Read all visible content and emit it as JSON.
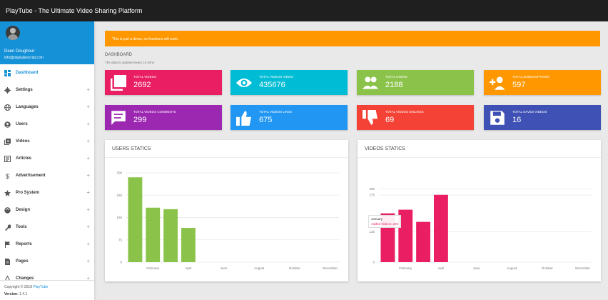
{
  "app": {
    "title": "PlayTube - The Ultimate Video Sharing Platform"
  },
  "user": {
    "name": "Deen Doughour",
    "email": "info@playtubescript.com"
  },
  "sidebar": {
    "items": [
      {
        "label": "Dashboard",
        "icon": "dashboard-icon",
        "active": true,
        "expandable": false
      },
      {
        "label": "Settings",
        "icon": "gear-icon",
        "active": false,
        "expandable": true
      },
      {
        "label": "Languages",
        "icon": "globe-icon",
        "active": false,
        "expandable": true
      },
      {
        "label": "Users",
        "icon": "user-icon",
        "active": false,
        "expandable": true
      },
      {
        "label": "Videos",
        "icon": "video-library-icon",
        "active": false,
        "expandable": true
      },
      {
        "label": "Articles",
        "icon": "articles-icon",
        "active": false,
        "expandable": true
      },
      {
        "label": "Advertisement",
        "icon": "dollar-icon",
        "active": false,
        "expandable": true
      },
      {
        "label": "Pro System",
        "icon": "star-icon",
        "active": false,
        "expandable": true
      },
      {
        "label": "Design",
        "icon": "palette-icon",
        "active": false,
        "expandable": true
      },
      {
        "label": "Tools",
        "icon": "wrench-icon",
        "active": false,
        "expandable": true
      },
      {
        "label": "Reports",
        "icon": "flag-icon",
        "active": false,
        "expandable": true
      },
      {
        "label": "Pages",
        "icon": "page-icon",
        "active": false,
        "expandable": true
      },
      {
        "label": "Changes",
        "icon": "changes-icon",
        "active": false,
        "expandable": true
      }
    ],
    "plus_glyph": "+"
  },
  "footer": {
    "copyright_prefix": "Copyright © 2018",
    "brand": "PlayTube",
    "version_label": "Version:",
    "version_value": "1.4.1"
  },
  "notice": {
    "text": "This is just a demo, no functions will work."
  },
  "dashboard": {
    "title": "DASHBOARD",
    "subtitle": "The data is updated every 10 mins"
  },
  "stats": [
    {
      "label": "TOTAL VIDEOS",
      "value": "2692",
      "color": "#e91e63",
      "icon": "video-library-icon"
    },
    {
      "label": "TOTAL VIDEOS VIEWS",
      "value": "435676",
      "color": "#00bcd4",
      "icon": "eye-icon"
    },
    {
      "label": "TOTAL USERS",
      "value": "2188",
      "color": "#8bc34a",
      "icon": "users-icon"
    },
    {
      "label": "TOTAL SUBSCRIPTIONS",
      "value": "597",
      "color": "#ff9800",
      "icon": "person-add-icon"
    },
    {
      "label": "TOTAL VIDEOS COMMENTS",
      "value": "299",
      "color": "#9c27b0",
      "icon": "comment-icon"
    },
    {
      "label": "TOTAL VIDEOS LIKES",
      "value": "675",
      "color": "#2196f3",
      "icon": "thumbs-up-icon"
    },
    {
      "label": "TOTAL VIDEOS DISLIKES",
      "value": "69",
      "color": "#f44336",
      "icon": "thumbs-down-icon"
    },
    {
      "label": "TOTAL SAVED VIDEOS",
      "value": "16",
      "color": "#3f51b5",
      "icon": "save-icon"
    }
  ],
  "chart_data": [
    {
      "type": "bar",
      "title": "USERS STATICS",
      "categories": [
        "January",
        "February",
        "March",
        "April",
        "May",
        "June",
        "July",
        "August",
        "September",
        "October",
        "November",
        "December"
      ],
      "x_tick_labels": [
        "February",
        "April",
        "June",
        "August",
        "October",
        "December"
      ],
      "y_ticks": [
        0,
        75,
        150,
        225,
        300
      ],
      "ylim": [
        0,
        300
      ],
      "grid": true,
      "color": "#8bc34a",
      "values": [
        285,
        183,
        178,
        115,
        0,
        0,
        0,
        0,
        0,
        0,
        0,
        0
      ]
    },
    {
      "type": "bar",
      "title": "VIDEOS STATICS",
      "categories": [
        "January",
        "February",
        "March",
        "April",
        "May",
        "June",
        "July",
        "August",
        "September",
        "October",
        "November",
        "December"
      ],
      "x_tick_labels": [
        "February",
        "April",
        "June",
        "August",
        "October",
        "December"
      ],
      "y_ticks": [
        0,
        125,
        275,
        300
      ],
      "ylim": [
        0,
        366
      ],
      "grid": true,
      "color": "#e91e63",
      "values": [
        200,
        215,
        165,
        276,
        0,
        0,
        0,
        0,
        0,
        0,
        0,
        0
      ],
      "tooltip": {
        "title": "January",
        "value": "Added Videos: 200"
      }
    }
  ]
}
